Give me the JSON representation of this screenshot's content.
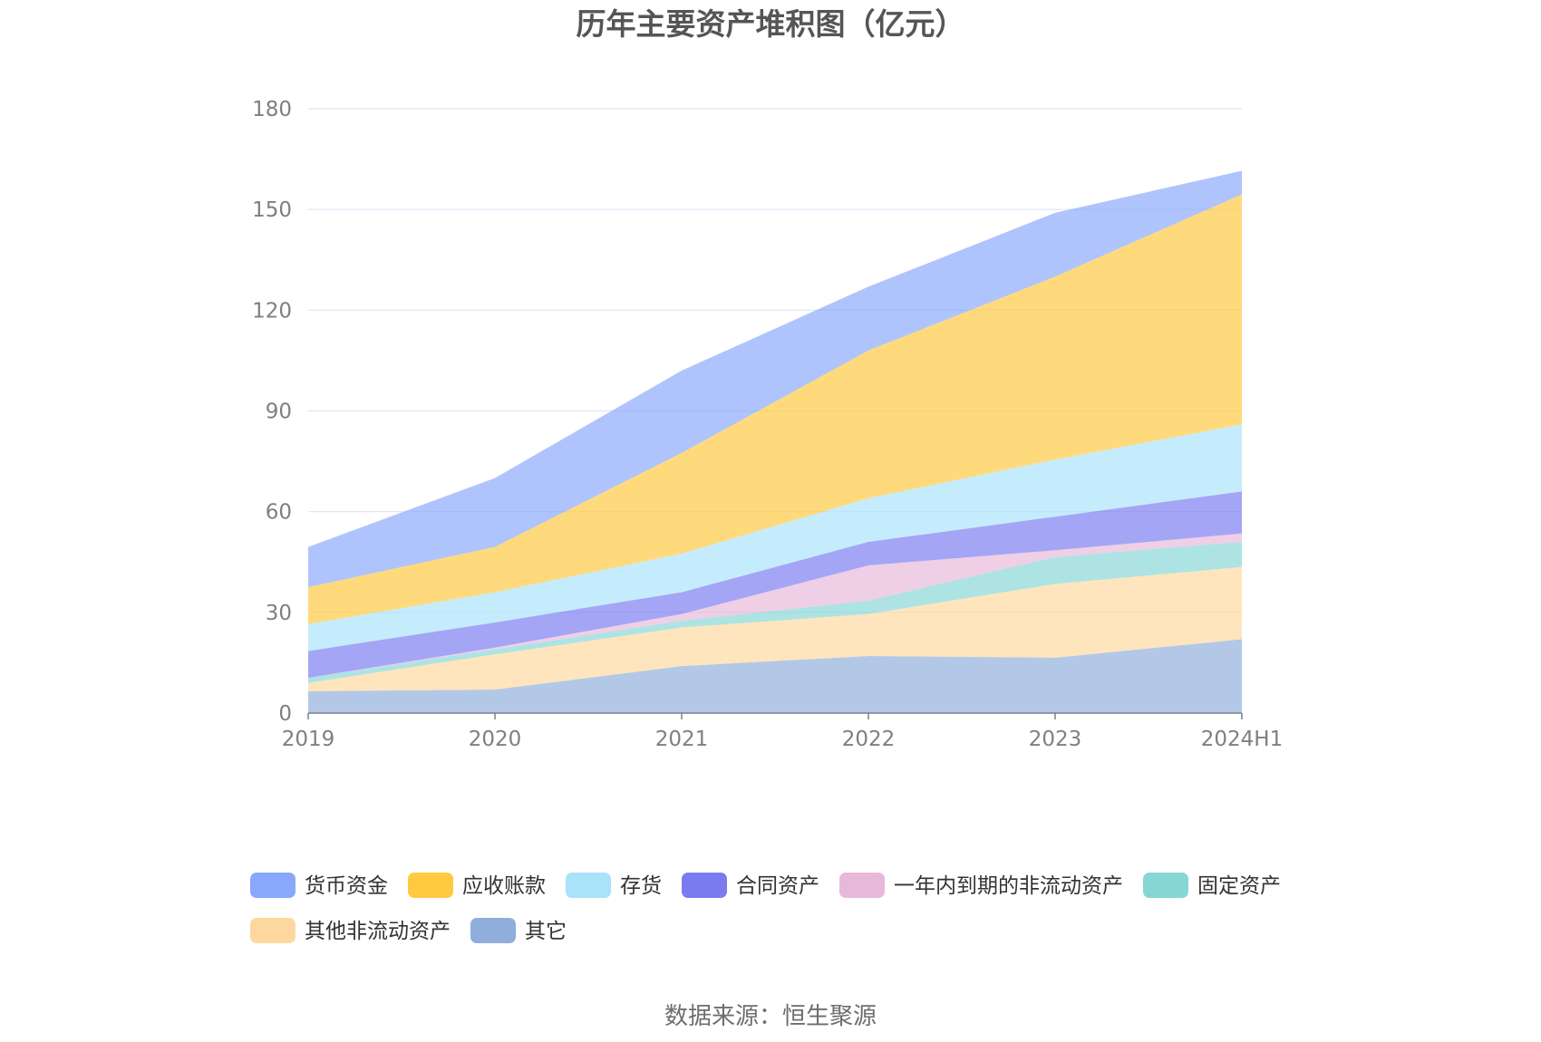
{
  "chart_data": {
    "type": "area",
    "stacked": true,
    "title": "历年主要资产堆积图（亿元）",
    "xlabel": "",
    "ylabel": "",
    "categories": [
      "2019",
      "2020",
      "2021",
      "2022",
      "2023",
      "2024H1"
    ],
    "ylim": [
      0,
      180
    ],
    "yticks": [
      0,
      30,
      60,
      90,
      120,
      150,
      180
    ],
    "grid": true,
    "legend_position": "bottom",
    "series": [
      {
        "name": "其它",
        "color": "#8faedb",
        "values": [
          6.5,
          7,
          14,
          17,
          16.5,
          22
        ]
      },
      {
        "name": "其他非流动资产",
        "color": "#fdd89e",
        "values": [
          2.5,
          10.5,
          11.5,
          12.5,
          22,
          21.5
        ]
      },
      {
        "name": "固定资产",
        "color": "#86d6d6",
        "values": [
          1.5,
          1.5,
          2,
          4,
          8,
          7.5
        ]
      },
      {
        "name": "一年内到期的非流动资产",
        "color": "#e8b8da",
        "values": [
          0,
          0.5,
          2,
          10.5,
          2,
          2.5
        ]
      },
      {
        "name": "合同资产",
        "color": "#7b7bf0",
        "values": [
          8,
          7.5,
          6.5,
          7,
          10,
          12.5
        ]
      },
      {
        "name": "存货",
        "color": "#a9e3fa",
        "values": [
          8,
          9,
          11.5,
          13,
          17,
          20
        ]
      },
      {
        "name": "应收账款",
        "color": "#ffc940",
        "values": [
          11,
          13.5,
          30,
          44,
          54.5,
          68.5
        ]
      },
      {
        "name": "货币资金",
        "color": "#89a8fb",
        "values": [
          12,
          20.5,
          24.5,
          19,
          19,
          7
        ]
      }
    ],
    "legend_order": [
      "货币资金",
      "应收账款",
      "存货",
      "合同资产",
      "一年内到期的非流动资产",
      "固定资产",
      "其他非流动资产",
      "其它"
    ]
  },
  "source_text": "数据来源：恒生聚源"
}
